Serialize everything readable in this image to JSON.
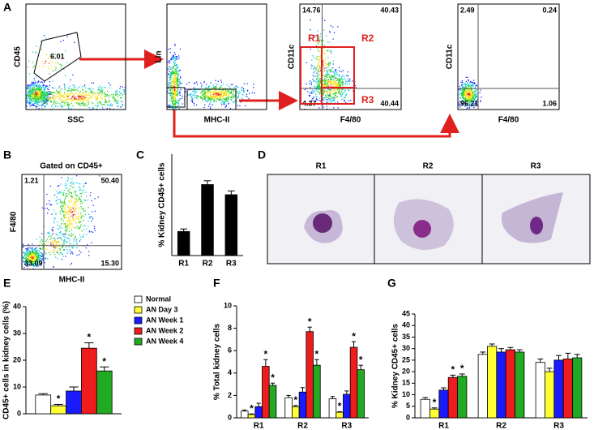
{
  "panel_letters": [
    "A",
    "B",
    "C",
    "D",
    "E",
    "F",
    "G"
  ],
  "flow": {
    "a1": {
      "ylabel": "CD45",
      "xlabel": "SSC",
      "gate": "6.01"
    },
    "a2": {
      "ylabel": "Lin",
      "xlabel": "MHC-II"
    },
    "a3": {
      "ylabel": "CD11c",
      "xlabel": "F4/80",
      "quadrants": [
        "14.76",
        "40.43",
        "4.37",
        "40.44"
      ],
      "regions": [
        "R1",
        "R2",
        "R3"
      ]
    },
    "a4": {
      "ylabel": "CD11c",
      "xlabel": "F4/80",
      "quadrants": [
        "2.49",
        "0.24",
        "96.21",
        "1.06"
      ]
    },
    "b": {
      "title": "Gated on CD45+",
      "ylabel": "F4/80",
      "xlabel": "MHC-II",
      "quadrants": [
        "1.21",
        "50.40",
        "33.09",
        "15.30"
      ]
    }
  },
  "images": {
    "labels": [
      "R1",
      "R2",
      "R3"
    ]
  },
  "chart_data": [
    {
      "type": "bar",
      "ylabel": "% Kidney CD45+ cells",
      "categories": [
        "R1",
        "R2",
        "R3"
      ],
      "ylim": [
        0,
        40
      ],
      "series": [
        {
          "color": "#000000",
          "values": [
            9.5,
            28,
            24
          ],
          "errors": [
            1,
            1.5,
            1.5
          ]
        }
      ]
    },
    {
      "type": "bar",
      "ylabel": "CD45+ cells in kidney cells (%)",
      "ylim": [
        0,
        40
      ],
      "yticks": [
        0,
        10,
        20,
        30,
        40
      ],
      "series": [
        {
          "name": "Normal",
          "color": "#ffffff",
          "values": [
            7
          ],
          "errors": [
            0.5
          ]
        },
        {
          "name": "AN Day 3",
          "color": "#ffff33",
          "values": [
            3
          ],
          "errors": [
            0.5
          ]
        },
        {
          "name": "AN Week 1",
          "color": "#1a1aff",
          "values": [
            8.5
          ],
          "errors": [
            1.5
          ]
        },
        {
          "name": "AN Week 2",
          "color": "#ee1c1c",
          "values": [
            24.5
          ],
          "errors": [
            2
          ]
        },
        {
          "name": "AN Week 4",
          "color": "#22aa22",
          "values": [
            16
          ],
          "errors": [
            1.5
          ]
        }
      ],
      "annotations": [
        {
          "text": "*",
          "series": 1,
          "category": 0
        },
        {
          "text": "*",
          "series": 3,
          "category": 0
        },
        {
          "text": "*",
          "series": 4,
          "category": 0
        }
      ]
    },
    {
      "type": "bar",
      "ylabel": "% Total kidney cells",
      "categories": [
        "R1",
        "R2",
        "R3"
      ],
      "ylim": [
        0,
        10
      ],
      "yticks": [
        0,
        2,
        4,
        6,
        8,
        10
      ],
      "series": [
        {
          "name": "Normal",
          "color": "#ffffff",
          "values": [
            0.6,
            1.8,
            1.7
          ],
          "errors": [
            0.1,
            0.2,
            0.2
          ]
        },
        {
          "name": "AN Day 3",
          "color": "#ffff33",
          "values": [
            0.3,
            1.0,
            0.5
          ],
          "errors": [
            0.05,
            0.1,
            0.05
          ]
        },
        {
          "name": "AN Week 1",
          "color": "#1a1aff",
          "values": [
            1.0,
            2.3,
            2.1
          ],
          "errors": [
            0.3,
            0.4,
            0.3
          ]
        },
        {
          "name": "AN Week 2",
          "color": "#ee1c1c",
          "values": [
            4.6,
            7.7,
            6.3
          ],
          "errors": [
            0.6,
            0.4,
            0.5
          ]
        },
        {
          "name": "AN Week 4",
          "color": "#22aa22",
          "values": [
            2.9,
            4.7,
            4.3
          ],
          "errors": [
            0.2,
            0.5,
            0.4
          ]
        }
      ],
      "annotations": [
        {
          "text": "*",
          "series": 1,
          "category": 0
        },
        {
          "text": "*",
          "series": 3,
          "category": 0
        },
        {
          "text": "*",
          "series": 4,
          "category": 0
        },
        {
          "text": "*",
          "series": 1,
          "category": 1
        },
        {
          "text": "*",
          "series": 3,
          "category": 1
        },
        {
          "text": "*",
          "series": 4,
          "category": 1
        },
        {
          "text": "*",
          "series": 1,
          "category": 2
        },
        {
          "text": "*",
          "series": 3,
          "category": 2
        },
        {
          "text": "*",
          "series": 4,
          "category": 2
        }
      ]
    },
    {
      "type": "bar",
      "ylabel": "% Kidney CD45+ cells",
      "categories": [
        "R1",
        "R2",
        "R3"
      ],
      "ylim": [
        0,
        45
      ],
      "yticks": [
        0,
        5,
        10,
        15,
        20,
        25,
        30,
        35,
        40,
        45
      ],
      "series": [
        {
          "name": "Normal",
          "color": "#ffffff",
          "values": [
            8,
            27.5,
            24
          ],
          "errors": [
            0.8,
            1,
            1.5
          ]
        },
        {
          "name": "AN Day 3",
          "color": "#ffff33",
          "values": [
            3.8,
            31,
            20
          ],
          "errors": [
            0.5,
            1,
            1.5
          ]
        },
        {
          "name": "AN Week 1",
          "color": "#1a1aff",
          "values": [
            12,
            28.5,
            25
          ],
          "errors": [
            1,
            1.5,
            2
          ]
        },
        {
          "name": "AN Week 2",
          "color": "#ee1c1c",
          "values": [
            17.5,
            29.5,
            25.5
          ],
          "errors": [
            1,
            1,
            2.5
          ]
        },
        {
          "name": "AN Week 4",
          "color": "#22aa22",
          "values": [
            18,
            28.5,
            26
          ],
          "errors": [
            1,
            1,
            1.5
          ]
        }
      ],
      "annotations": [
        {
          "text": "*",
          "series": 1,
          "category": 0
        },
        {
          "text": "*",
          "series": 3,
          "category": 0
        },
        {
          "text": "*",
          "series": 4,
          "category": 0
        }
      ]
    }
  ]
}
